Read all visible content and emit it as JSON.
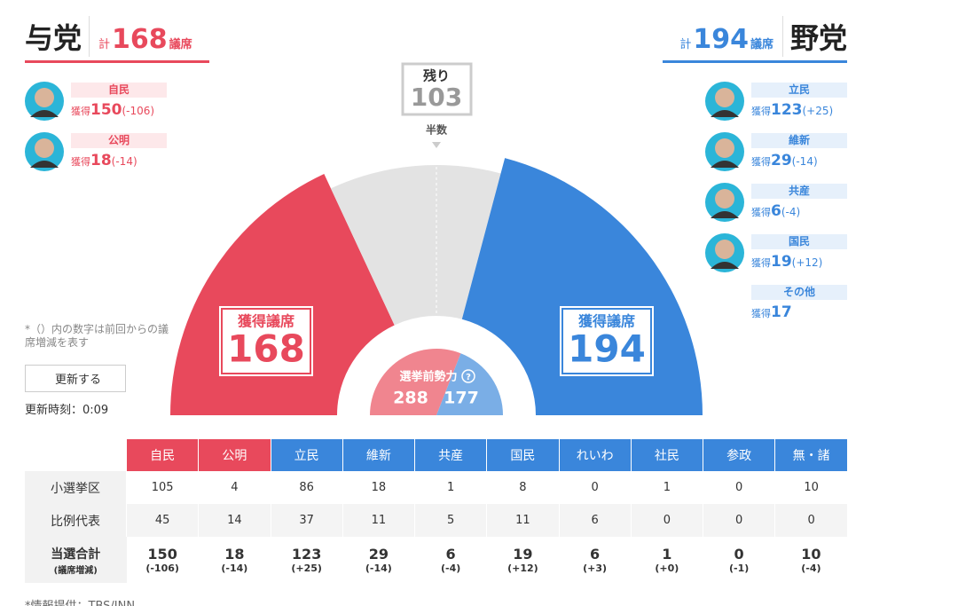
{
  "ruling": {
    "title": "与党",
    "total_prefix": "計",
    "total": 168,
    "total_suffix": "議席",
    "color": "#e8495c",
    "parties": [
      {
        "name": "自民",
        "label": "獲得",
        "seats": 150,
        "change": "(-106)"
      },
      {
        "name": "公明",
        "label": "獲得",
        "seats": 18,
        "change": "(-14)"
      }
    ]
  },
  "opposition": {
    "title": "野党",
    "total_prefix": "計",
    "total": 194,
    "total_suffix": "議席",
    "color": "#3a86db",
    "parties": [
      {
        "name": "立民",
        "label": "獲得",
        "seats": 123,
        "change": "(+25)"
      },
      {
        "name": "維新",
        "label": "獲得",
        "seats": 29,
        "change": "(-14)"
      },
      {
        "name": "共産",
        "label": "獲得",
        "seats": 6,
        "change": "(-4)"
      },
      {
        "name": "国民",
        "label": "獲得",
        "seats": 19,
        "change": "(+12)"
      },
      {
        "name": "その他",
        "label": "獲得",
        "seats": 17
      }
    ]
  },
  "gauge": {
    "remaining_label": "残り",
    "remaining": 103,
    "half_label": "半数",
    "ruling_label": "獲得議席",
    "ruling_seats": 168,
    "opposition_label": "獲得議席",
    "opposition_seats": 194,
    "pre_election_label": "選挙前勢力",
    "help_icon": "?",
    "pre_ruling": 288,
    "pre_opposition": 177
  },
  "note": "*（）内の数字は前回からの議席増減を表す",
  "update_button": "更新する",
  "update_time": "更新時刻：0:09",
  "table": {
    "header": [
      {
        "name": "自民",
        "color": "#e8495c"
      },
      {
        "name": "公明",
        "color": "#e8495c"
      },
      {
        "name": "立民",
        "color": "#3a86db"
      },
      {
        "name": "維新",
        "color": "#3a86db"
      },
      {
        "name": "共産",
        "color": "#3a86db"
      },
      {
        "name": "国民",
        "color": "#3a86db"
      },
      {
        "name": "れいわ",
        "color": "#3a86db"
      },
      {
        "name": "社民",
        "color": "#3a86db"
      },
      {
        "name": "参政",
        "color": "#3a86db"
      },
      {
        "name": "無・諸",
        "color": "#3a86db"
      }
    ],
    "rows": [
      {
        "label": "小選挙区",
        "values": [
          105,
          4,
          86,
          18,
          1,
          8,
          0,
          1,
          0,
          10
        ]
      },
      {
        "label": "比例代表",
        "values": [
          45,
          14,
          37,
          11,
          5,
          11,
          6,
          0,
          0,
          0
        ]
      }
    ],
    "total": {
      "label": "当選合計",
      "sublabel": "(議席増減)",
      "values": [
        150,
        18,
        123,
        29,
        6,
        19,
        6,
        1,
        0,
        10
      ],
      "changes": [
        "(-106)",
        "(-14)",
        "(+25)",
        "(-14)",
        "(-4)",
        "(+12)",
        "(+3)",
        "(+0)",
        "(-1)",
        "(-4)"
      ]
    }
  },
  "footer": "*情報提供：TBS/JNN"
}
